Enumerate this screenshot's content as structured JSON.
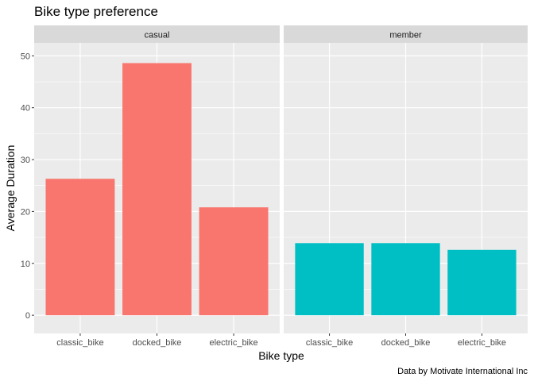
{
  "chart_data": {
    "type": "bar",
    "title": "Bike type preference",
    "xlabel": "Bike type",
    "ylabel": "Average Duration",
    "caption": "Data by Motivate International Inc",
    "categories": [
      "classic_bike",
      "docked_bike",
      "electric_bike"
    ],
    "ylim": [
      -3.5,
      52.5
    ],
    "yticks": [
      0,
      10,
      20,
      30,
      40,
      50
    ],
    "grid": true,
    "facets": [
      {
        "name": "casual",
        "color": "#F8766D",
        "values": [
          26.3,
          48.6,
          20.8
        ]
      },
      {
        "name": "member",
        "color": "#00BFC4",
        "values": [
          13.9,
          13.9,
          12.6
        ]
      }
    ]
  }
}
